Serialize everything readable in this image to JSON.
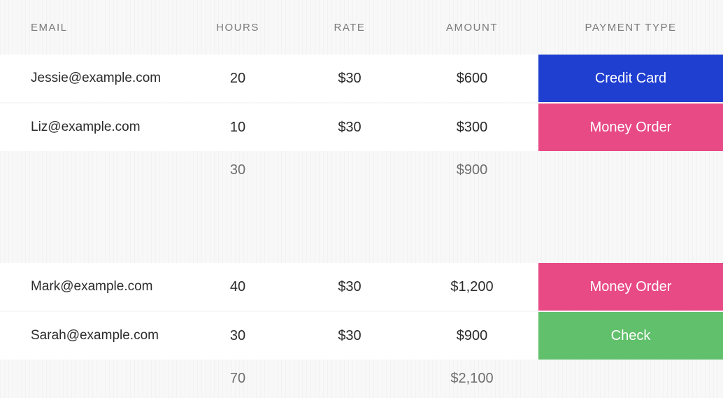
{
  "columns": {
    "email": "EMAIL",
    "hours": "HOURS",
    "rate": "RATE",
    "amount": "AMOUNT",
    "payment": "PAYMENT TYPE"
  },
  "payment_colors": {
    "Credit Card": "#1f3fd1",
    "Money Order": "#e84a86",
    "Check": "#61c06b"
  },
  "groups": [
    {
      "rows": [
        {
          "email": "Jessie@example.com",
          "hours": "20",
          "rate": "$30",
          "amount": "$600",
          "payment": "Credit Card"
        },
        {
          "email": "Liz@example.com",
          "hours": "10",
          "rate": "$30",
          "amount": "$300",
          "payment": "Money Order"
        }
      ],
      "subtotal": {
        "hours": "30",
        "amount": "$900"
      }
    },
    {
      "rows": [
        {
          "email": "Mark@example.com",
          "hours": "40",
          "rate": "$30",
          "amount": "$1,200",
          "payment": "Money Order"
        },
        {
          "email": "Sarah@example.com",
          "hours": "30",
          "rate": "$30",
          "amount": "$900",
          "payment": "Check"
        }
      ],
      "subtotal": {
        "hours": "70",
        "amount": "$2,100"
      }
    }
  ]
}
